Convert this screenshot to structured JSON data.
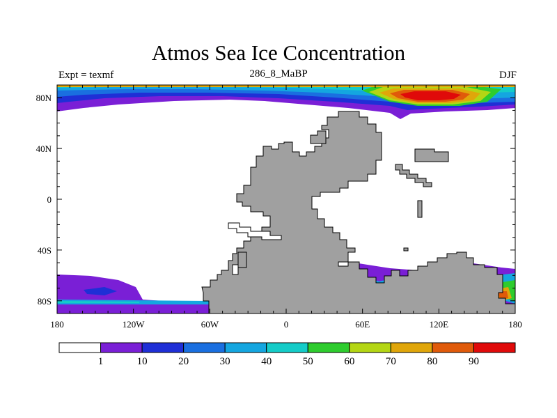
{
  "title": "Atmos Sea Ice Concentration",
  "subtitle_left": "Expt = texmf",
  "subtitle_center": "286_8_MaBP",
  "subtitle_right": "DJF",
  "map": {
    "lon_range": [
      -180,
      180
    ],
    "lat_range": [
      -90,
      90
    ],
    "land_color": "#a0a0a0",
    "ocean_color": "#ffffff",
    "x_ticks": [
      {
        "lon": -180,
        "label": "180"
      },
      {
        "lon": -120,
        "label": "120W"
      },
      {
        "lon": -60,
        "label": "60W"
      },
      {
        "lon": 0,
        "label": "0"
      },
      {
        "lon": 60,
        "label": "60E"
      },
      {
        "lon": 120,
        "label": "120E"
      },
      {
        "lon": 180,
        "label": "180"
      }
    ],
    "y_ticks": [
      {
        "lat": 80,
        "label": "80N"
      },
      {
        "lat": 40,
        "label": "40N"
      },
      {
        "lat": 0,
        "label": "0"
      },
      {
        "lat": -40,
        "label": "40S"
      },
      {
        "lat": -80,
        "label": "80S"
      }
    ]
  },
  "colorbar": {
    "colors": [
      "#ffffff",
      "#7a1fd6",
      "#1f2fd6",
      "#1a6fe0",
      "#14a6e0",
      "#14ccc8",
      "#2ecc2e",
      "#b4d614",
      "#e0a60a",
      "#e05a0a",
      "#e00a0a"
    ],
    "labels": [
      "1",
      "10",
      "20",
      "30",
      "40",
      "50",
      "60",
      "70",
      "80",
      "90"
    ]
  }
}
